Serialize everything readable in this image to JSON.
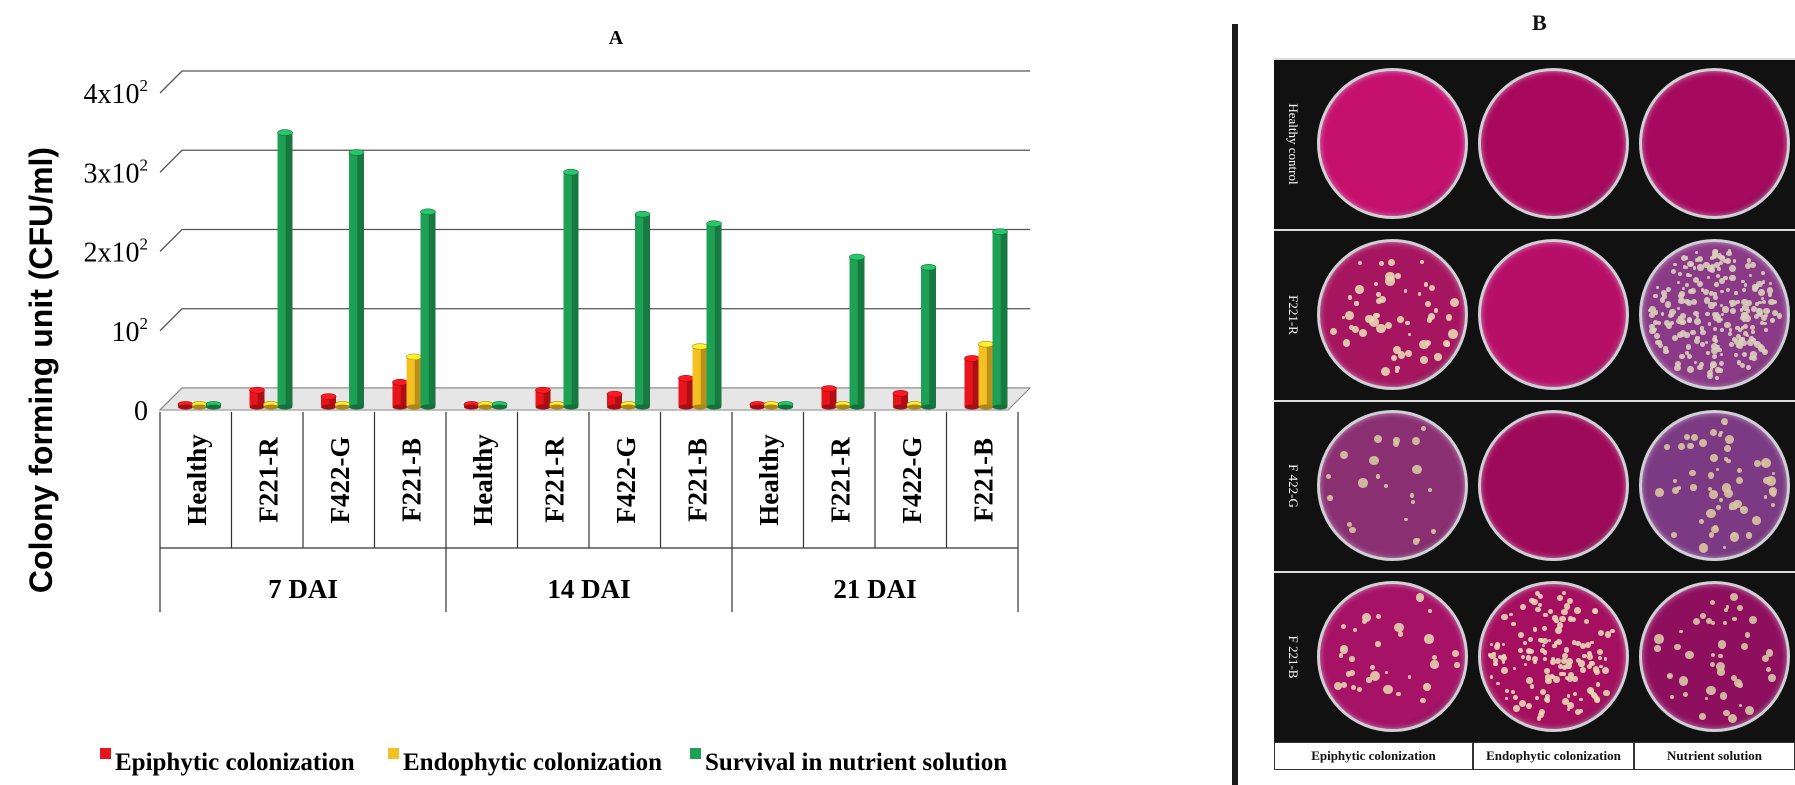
{
  "panel_a": {
    "letter": "A",
    "ylabel": "Colony forming unit (CFU/ml)",
    "legend": [
      {
        "label": "Epiphytic colonization",
        "color": "#e8141b"
      },
      {
        "label": "Endophytic colonization",
        "color": "#f5c022"
      },
      {
        "label": "Survival in  nutrient solution",
        "color": "#1ea055"
      }
    ]
  },
  "chart_data": {
    "type": "bar",
    "ylabel": "Colony forming unit (CFU/ml)",
    "ylim": [
      0,
      400
    ],
    "yticks": [
      {
        "value": 0,
        "label": "0"
      },
      {
        "value": 100,
        "label": "10²"
      },
      {
        "value": 200,
        "label": "2x10²"
      },
      {
        "value": 300,
        "label": "3x10²"
      },
      {
        "value": 400,
        "label": "4x10²"
      }
    ],
    "categories": [
      "Healthy",
      "F221-R",
      "F422-G",
      "F221-B",
      "Healthy",
      "F221-R",
      "F422-G",
      "F221-B",
      "Healthy",
      "F221-R",
      "F422-G",
      "F221-B"
    ],
    "groups": [
      {
        "label": "7 DAI",
        "start": 0,
        "end": 3
      },
      {
        "label": "14 DAI",
        "start": 4,
        "end": 7
      },
      {
        "label": "21 DAI",
        "start": 8,
        "end": 11
      }
    ],
    "series": [
      {
        "name": "Epiphytic colonization",
        "color": "#e8141b",
        "values": [
          2,
          20,
          12,
          30,
          2,
          20,
          15,
          35,
          2,
          22,
          16,
          60
        ]
      },
      {
        "name": "Endophytic colonization",
        "color": "#f5c022",
        "values": [
          2,
          2,
          2,
          62,
          2,
          2,
          2,
          75,
          2,
          2,
          2,
          78
        ]
      },
      {
        "name": "Survival in  nutrient solution",
        "color": "#1ea055",
        "values": [
          2,
          345,
          320,
          245,
          2,
          295,
          242,
          230,
          2,
          188,
          175,
          220
        ]
      }
    ],
    "grid": true,
    "legend_position": "bottom"
  },
  "panel_b": {
    "letter": "B",
    "rows": [
      {
        "label": "Healthy control",
        "plates": [
          {
            "bg": "#c5106e",
            "colonies": 0,
            "colony": "#e9d9b0"
          },
          {
            "bg": "#a8095d",
            "colonies": 0,
            "colony": "#e9d9b0"
          },
          {
            "bg": "#a50a5e",
            "colonies": 0,
            "colony": "#e9d9b0"
          }
        ]
      },
      {
        "label": "F221-R",
        "plates": [
          {
            "bg": "#a61660",
            "colonies": 55,
            "colony": "#e7d7b3"
          },
          {
            "bg": "#b70f68",
            "colonies": 0,
            "colony": "#e9d9b0"
          },
          {
            "bg": "#8a3a86",
            "colonies": 260,
            "colony": "#d9cfbd"
          }
        ]
      },
      {
        "label": "F 422-G",
        "plates": [
          {
            "bg": "#8a2f72",
            "colonies": 22,
            "colony": "#d6c6a3"
          },
          {
            "bg": "#9d0a59",
            "colonies": 0,
            "colony": "#e9d9b0"
          },
          {
            "bg": "#7b3a83",
            "colonies": 60,
            "colony": "#d9c5a0"
          }
        ]
      },
      {
        "label": "F 221-B",
        "plates": [
          {
            "bg": "#a51266",
            "colonies": 35,
            "colony": "#e3d1ad"
          },
          {
            "bg": "#a4105f",
            "colonies": 150,
            "colony": "#e7d7b5"
          },
          {
            "bg": "#8f0f5f",
            "colonies": 45,
            "colony": "#d7c6a6"
          }
        ]
      }
    ],
    "columns": [
      "Epiphytic colonization",
      "Endophytic colonization",
      "Nutrient solution"
    ]
  }
}
